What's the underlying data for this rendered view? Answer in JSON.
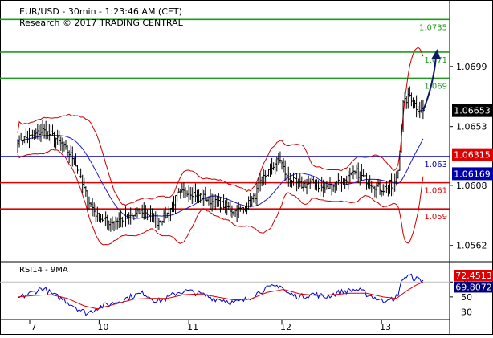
{
  "header": {
    "title": "EUR/USD - 30min - 1:23:46 AM (CET)",
    "subtitle": "Research © 2017 TRADING CENTRAL"
  },
  "colors": {
    "resistance": "#1e9a1e",
    "support": "#dd0000",
    "pivot": "#0000aa",
    "bollinger": "#cc0000",
    "moving_average": "#1a1acc",
    "price": "#000000",
    "rsi": "#0000cc",
    "rsi_ma": "#dd0000",
    "arrow": "#0a1a66",
    "last_price_bg": "#000000",
    "support_label_bg": "#dd0000",
    "ma_label_bg": "#0000aa",
    "rsi_label_bg": "#dd0000",
    "rsi_ma_label_bg": "#00007a"
  },
  "chart_data": [
    {
      "type": "line",
      "title": "EUR/USD - 30min - 1:23:46 AM (CET)",
      "subtitle": "Research © 2017 TRADING CENTRAL",
      "x_tick_labels": [
        "7",
        "10",
        "11",
        "12",
        "13"
      ],
      "y_tick_labels": [
        "1.0699",
        "1.0653",
        "1.0608",
        "1.0562"
      ],
      "y_ticks": [
        1.0699,
        1.0653,
        1.0608,
        1.0562
      ],
      "ylim": [
        1.0552,
        1.0745
      ],
      "grid": false,
      "levels": [
        {
          "label": "1.0735",
          "value": 1.0735,
          "role": "resistance"
        },
        {
          "label": "1.071",
          "value": 1.071,
          "role": "resistance"
        },
        {
          "label": "1.069",
          "value": 1.069,
          "role": "resistance"
        },
        {
          "label": "1.063",
          "value": 1.063,
          "role": "pivot"
        },
        {
          "label": "1.061",
          "value": 1.061,
          "role": "support"
        },
        {
          "label": "1.059",
          "value": 1.059,
          "role": "support"
        }
      ],
      "badges": [
        {
          "label": "1.06653",
          "value": 1.06653,
          "kind": "last_price"
        },
        {
          "label": "1.06315",
          "value": 1.06315,
          "kind": "level"
        },
        {
          "label": "1.06169",
          "value": 1.06169,
          "kind": "moving_average"
        }
      ],
      "price_keypoints": [
        [
          0,
          1.0643
        ],
        [
          8,
          1.0645
        ],
        [
          15,
          1.065
        ],
        [
          22,
          1.0645
        ],
        [
          28,
          1.0637
        ],
        [
          34,
          1.0628
        ],
        [
          38,
          1.0612
        ],
        [
          42,
          1.0598
        ],
        [
          48,
          1.0584
        ],
        [
          55,
          1.058
        ],
        [
          62,
          1.0582
        ],
        [
          70,
          1.0585
        ],
        [
          76,
          1.0589
        ],
        [
          84,
          1.058
        ],
        [
          90,
          1.0586
        ],
        [
          96,
          1.06
        ],
        [
          102,
          1.0604
        ],
        [
          110,
          1.06
        ],
        [
          118,
          1.0595
        ],
        [
          124,
          1.0593
        ],
        [
          130,
          1.0588
        ],
        [
          136,
          1.059
        ],
        [
          142,
          1.0598
        ],
        [
          148,
          1.0614
        ],
        [
          155,
          1.0625
        ],
        [
          158,
          1.0628
        ],
        [
          162,
          1.0614
        ],
        [
          170,
          1.0608
        ],
        [
          178,
          1.061
        ],
        [
          185,
          1.0605
        ],
        [
          192,
          1.061
        ],
        [
          198,
          1.0613
        ],
        [
          204,
          1.0618
        ],
        [
          210,
          1.0612
        ],
        [
          216,
          1.0607
        ],
        [
          220,
          1.0605
        ],
        [
          224,
          1.0609
        ],
        [
          226,
          1.0604
        ],
        [
          229,
          1.062
        ],
        [
          232,
          1.067
        ],
        [
          236,
          1.0677
        ],
        [
          240,
          1.0668
        ],
        [
          244,
          1.0665
        ]
      ],
      "forecast_arrow": {
        "from": [
          244,
          1.0665
        ],
        "to": [
          252,
          1.071
        ]
      }
    },
    {
      "type": "line",
      "title": "RSI14 - 9MA",
      "y_tick_labels": [
        "70",
        "50",
        "30"
      ],
      "y_ticks": [
        70,
        50,
        30
      ],
      "ylim": [
        23,
        95
      ],
      "badges": [
        {
          "label": "72.4513",
          "value": 72.4513,
          "kind": "rsi"
        },
        {
          "label": "69.8072",
          "value": 69.8072,
          "kind": "rsi_ma"
        }
      ],
      "series": [
        {
          "role": "rsi",
          "keypoints": [
            [
              0,
              48
            ],
            [
              8,
              55
            ],
            [
              15,
              62
            ],
            [
              22,
              52
            ],
            [
              28,
              46
            ],
            [
              34,
              38
            ],
            [
              38,
              32
            ],
            [
              42,
              28
            ],
            [
              48,
              36
            ],
            [
              55,
              40
            ],
            [
              62,
              45
            ],
            [
              70,
              52
            ],
            [
              76,
              55
            ],
            [
              84,
              44
            ],
            [
              90,
              48
            ],
            [
              96,
              56
            ],
            [
              102,
              58
            ],
            [
              110,
              54
            ],
            [
              118,
              48
            ],
            [
              124,
              46
            ],
            [
              130,
              42
            ],
            [
              136,
              45
            ],
            [
              142,
              52
            ],
            [
              148,
              60
            ],
            [
              155,
              64
            ],
            [
              158,
              66
            ],
            [
              162,
              55
            ],
            [
              170,
              50
            ],
            [
              178,
              54
            ],
            [
              185,
              50
            ],
            [
              192,
              55
            ],
            [
              198,
              58
            ],
            [
              204,
              60
            ],
            [
              210,
              54
            ],
            [
              216,
              48
            ],
            [
              220,
              44
            ],
            [
              224,
              50
            ],
            [
              226,
              42
            ],
            [
              229,
              55
            ],
            [
              232,
              76
            ],
            [
              236,
              78
            ],
            [
              240,
              74
            ],
            [
              244,
              72.5
            ]
          ]
        },
        {
          "role": "rsi_ma",
          "keypoints": [
            [
              0,
              50
            ],
            [
              10,
              52
            ],
            [
              20,
              53
            ],
            [
              30,
              48
            ],
            [
              40,
              38
            ],
            [
              48,
              34
            ],
            [
              58,
              40
            ],
            [
              70,
              47
            ],
            [
              80,
              48
            ],
            [
              90,
              48
            ],
            [
              100,
              53
            ],
            [
              110,
              54
            ],
            [
              120,
              50
            ],
            [
              130,
              46
            ],
            [
              140,
              47
            ],
            [
              150,
              56
            ],
            [
              160,
              60
            ],
            [
              170,
              54
            ],
            [
              180,
              52
            ],
            [
              190,
              53
            ],
            [
              200,
              55
            ],
            [
              210,
              55
            ],
            [
              220,
              50
            ],
            [
              228,
              48
            ],
            [
              234,
              58
            ],
            [
              240,
              66
            ],
            [
              244,
              69.8
            ]
          ]
        }
      ]
    }
  ]
}
